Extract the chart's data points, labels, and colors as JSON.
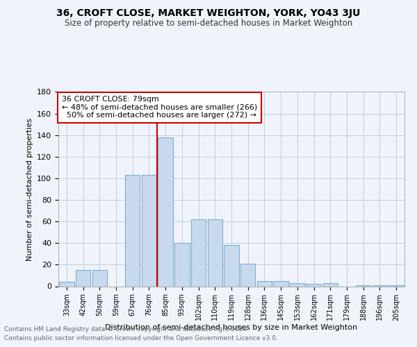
{
  "title": "36, CROFT CLOSE, MARKET WEIGHTON, YORK, YO43 3JU",
  "subtitle": "Size of property relative to semi-detached houses in Market Weighton",
  "xlabel": "Distribution of semi-detached houses by size in Market Weighton",
  "ylabel": "Number of semi-detached properties",
  "categories": [
    "33sqm",
    "42sqm",
    "50sqm",
    "59sqm",
    "67sqm",
    "76sqm",
    "85sqm",
    "93sqm",
    "102sqm",
    "110sqm",
    "119sqm",
    "128sqm",
    "136sqm",
    "145sqm",
    "153sqm",
    "162sqm",
    "171sqm",
    "179sqm",
    "188sqm",
    "196sqm",
    "205sqm"
  ],
  "values": [
    4,
    15,
    15,
    0,
    103,
    103,
    138,
    40,
    62,
    62,
    38,
    21,
    5,
    5,
    3,
    2,
    3,
    0,
    1,
    1,
    1
  ],
  "bar_color": "#c8d9ee",
  "bar_edge_color": "#7aafd4",
  "property_line_color": "#cc0000",
  "property_line_index": 6.0,
  "annotation_text": "36 CROFT CLOSE: 79sqm\n← 48% of semi-detached houses are smaller (266)\n  50% of semi-detached houses are larger (272) →",
  "annotation_box_color": "#ffffff",
  "annotation_box_edge": "#cc0000",
  "footer_line1": "Contains HM Land Registry data © Crown copyright and database right 2024.",
  "footer_line2": "Contains public sector information licensed under the Open Government Licence v3.0.",
  "ylim": [
    0,
    180
  ],
  "yticks": [
    0,
    20,
    40,
    60,
    80,
    100,
    120,
    140,
    160,
    180
  ],
  "background_color": "#f0f4fa",
  "grid_color": "#c0cce0"
}
